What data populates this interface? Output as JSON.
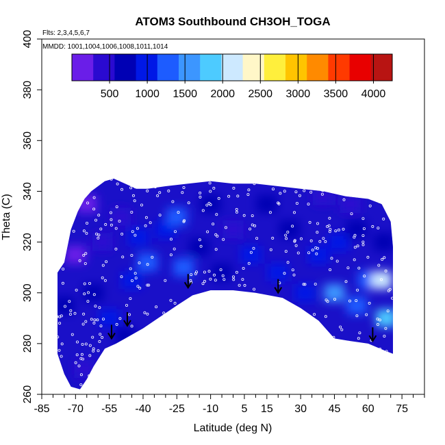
{
  "chart_data": {
    "type": "heatmap",
    "title": "ATOM3 Southbound CH3OH_TOGA",
    "notes": [
      "Flts: 2,3,4,5,6,7",
      "MMDD: 1001,1004,1006,1008,1011,1014"
    ],
    "xlabel": "Latitude (deg N)",
    "ylabel": "Theta (C)",
    "xlim": [
      -85,
      85
    ],
    "ylim": [
      260,
      400
    ],
    "x_ticks": [
      -85,
      -70,
      -55,
      -40,
      -25,
      -10,
      5,
      15,
      30,
      45,
      60,
      75
    ],
    "y_ticks": [
      260,
      280,
      300,
      320,
      340,
      360,
      380,
      400
    ],
    "colorbar": {
      "range": [
        0,
        4250
      ],
      "ticks": [
        500,
        1000,
        1500,
        2000,
        2500,
        3000,
        3500,
        4000
      ],
      "colors": [
        "#6a1ee8",
        "#2a0ad0",
        "#0000b4",
        "#0018e6",
        "#1d5cff",
        "#3c96ff",
        "#4dcbff",
        "#cde9ff",
        "#fff7c8",
        "#ffef3c",
        "#ffc400",
        "#ff8a00",
        "#ff3a00",
        "#e80000",
        "#b81412"
      ]
    },
    "tropopause_markers": [
      {
        "lat": -54,
        "theta": 282
      },
      {
        "lat": -47,
        "theta": 287
      },
      {
        "lat": -20,
        "theta": 302
      },
      {
        "lat": 20,
        "theta": 300
      },
      {
        "lat": 62,
        "theta": 281
      }
    ],
    "upper_boundary": [
      [
        -78,
        308
      ],
      [
        -75,
        312
      ],
      [
        -72,
        325
      ],
      [
        -69,
        332
      ],
      [
        -66,
        337
      ],
      [
        -63,
        340
      ],
      [
        -60,
        342
      ],
      [
        -57,
        344
      ],
      [
        -53,
        345
      ],
      [
        -48,
        343
      ],
      [
        -43,
        341
      ],
      [
        -38,
        341
      ],
      [
        -30,
        342
      ],
      [
        -20,
        343
      ],
      [
        -10,
        344
      ],
      [
        0,
        343
      ],
      [
        10,
        343
      ],
      [
        20,
        342
      ],
      [
        30,
        341
      ],
      [
        40,
        340
      ],
      [
        50,
        338
      ],
      [
        60,
        337
      ],
      [
        66,
        335
      ],
      [
        70,
        328
      ],
      [
        71,
        318
      ]
    ],
    "lower_boundary": [
      [
        71,
        276
      ],
      [
        68,
        277
      ],
      [
        60,
        280
      ],
      [
        52,
        281
      ],
      [
        45,
        282
      ],
      [
        38,
        289
      ],
      [
        30,
        294
      ],
      [
        22,
        298
      ],
      [
        10,
        300
      ],
      [
        0,
        301
      ],
      [
        -10,
        301
      ],
      [
        -18,
        299
      ],
      [
        -25,
        295
      ],
      [
        -30,
        292
      ],
      [
        -35,
        289
      ],
      [
        -40,
        286
      ],
      [
        -46,
        283
      ],
      [
        -52,
        280
      ],
      [
        -57,
        278
      ],
      [
        -62,
        271
      ],
      [
        -65,
        266
      ],
      [
        -68,
        262
      ],
      [
        -72,
        263
      ],
      [
        -75,
        268
      ],
      [
        -78,
        276
      ]
    ],
    "field": [
      {
        "lat": -75,
        "theta": 295,
        "value": 600
      },
      {
        "lat": -70,
        "theta": 315,
        "value": 250
      },
      {
        "lat": -65,
        "theta": 335,
        "value": 200
      },
      {
        "lat": -62,
        "theta": 300,
        "value": 750
      },
      {
        "lat": -58,
        "theta": 320,
        "value": 550
      },
      {
        "lat": -55,
        "theta": 290,
        "value": 850
      },
      {
        "lat": -50,
        "theta": 330,
        "value": 300
      },
      {
        "lat": -45,
        "theta": 305,
        "value": 900
      },
      {
        "lat": -42,
        "theta": 322,
        "value": 1050
      },
      {
        "lat": -38,
        "theta": 312,
        "value": 1200
      },
      {
        "lat": -30,
        "theta": 325,
        "value": 1000
      },
      {
        "lat": -25,
        "theta": 330,
        "value": 1250
      },
      {
        "lat": -22,
        "theta": 310,
        "value": 1300
      },
      {
        "lat": -15,
        "theta": 318,
        "value": 700
      },
      {
        "lat": -10,
        "theta": 335,
        "value": 600
      },
      {
        "lat": -5,
        "theta": 308,
        "value": 750
      },
      {
        "lat": 0,
        "theta": 325,
        "value": 550
      },
      {
        "lat": 8,
        "theta": 315,
        "value": 900
      },
      {
        "lat": 15,
        "theta": 335,
        "value": 650
      },
      {
        "lat": 20,
        "theta": 308,
        "value": 850
      },
      {
        "lat": 25,
        "theta": 325,
        "value": 700
      },
      {
        "lat": 32,
        "theta": 300,
        "value": 1100
      },
      {
        "lat": 38,
        "theta": 315,
        "value": 850
      },
      {
        "lat": 45,
        "theta": 300,
        "value": 1600
      },
      {
        "lat": 47,
        "theta": 320,
        "value": 1100
      },
      {
        "lat": 52,
        "theta": 335,
        "value": 500
      },
      {
        "lat": 55,
        "theta": 295,
        "value": 1300
      },
      {
        "lat": 60,
        "theta": 305,
        "value": 1400
      },
      {
        "lat": 66,
        "theta": 305,
        "value": 2100
      },
      {
        "lat": 68,
        "theta": 290,
        "value": 1700
      },
      {
        "lat": 67,
        "theta": 320,
        "value": 800
      },
      {
        "lat": 55,
        "theta": 325,
        "value": 600
      },
      {
        "lat": -48,
        "theta": 283,
        "value": 600
      },
      {
        "lat": -66,
        "theta": 270,
        "value": 500
      },
      {
        "lat": 40,
        "theta": 338,
        "value": 350
      }
    ],
    "legend_position": "top inside plot"
  }
}
